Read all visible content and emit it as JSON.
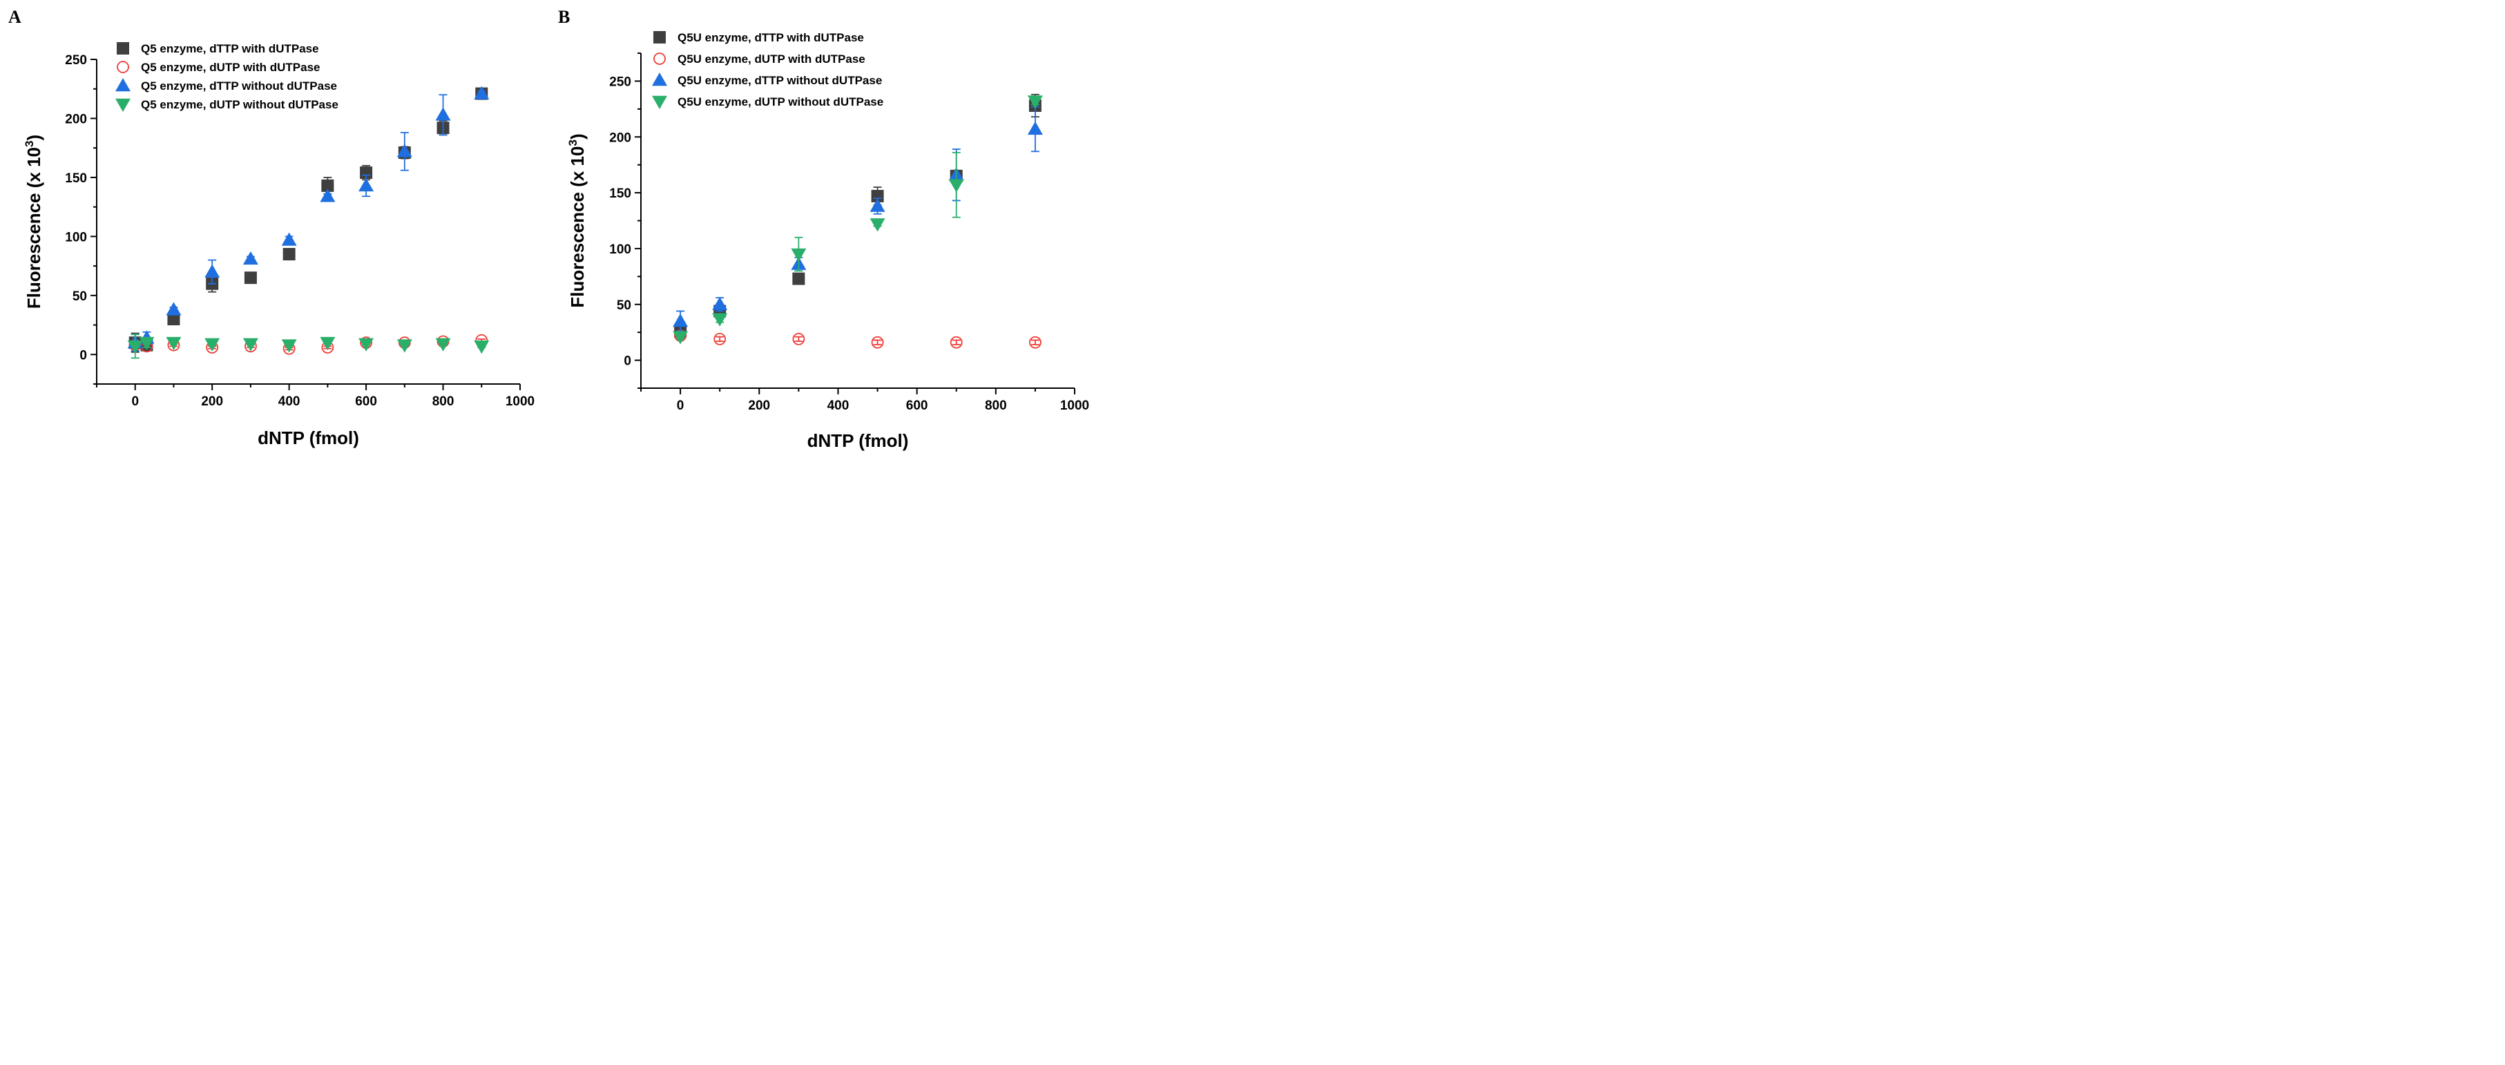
{
  "figure": {
    "panels": [
      "A",
      "B"
    ]
  },
  "colors": {
    "dTTP_with": "#3f3f3f",
    "dUTP_with": "#ef3b36",
    "dTTP_without": "#1f6fe0",
    "dUTP_without": "#2aaf6a"
  },
  "chart_data": [
    {
      "panel": "A",
      "type": "scatter",
      "title": "",
      "xlabel": "dNTP (fmol)",
      "ylabel_main": "Fluorescence (x 10",
      "ylabel_sup": "3",
      "ylabel_close": ")",
      "xlim": [
        -100,
        1000
      ],
      "ylim": [
        -25,
        250
      ],
      "xticks": [
        0,
        200,
        400,
        600,
        800,
        1000
      ],
      "yticks": [
        0,
        50,
        100,
        150,
        200,
        250
      ],
      "grid": false,
      "legend_position": "top-left",
      "series": [
        {
          "name": "Q5 enzyme, dTTP with dUTPase",
          "marker": "square",
          "color": "#3f3f3f",
          "x": [
            0,
            30,
            100,
            200,
            300,
            400,
            500,
            600,
            700,
            800,
            900
          ],
          "y": [
            10,
            8,
            30,
            60,
            65,
            85,
            143,
            154,
            171,
            192,
            221
          ],
          "err": [
            8,
            5,
            2,
            7,
            2,
            3,
            7,
            6,
            5,
            6,
            2
          ]
        },
        {
          "name": "Q5 enzyme, dUTP with dUTPase",
          "marker": "circle-open",
          "color": "#ef3b36",
          "x": [
            0,
            30,
            100,
            200,
            300,
            400,
            500,
            600,
            700,
            800,
            900
          ],
          "y": [
            8,
            7,
            8,
            6,
            7,
            5,
            6,
            10,
            10,
            11,
            12
          ],
          "err": [
            2,
            1,
            1,
            1,
            1,
            1,
            1,
            1,
            1,
            1,
            1
          ]
        },
        {
          "name": "Q5 enzyme, dTTP without dUTPase",
          "marker": "triangle-up",
          "color": "#1f6fe0",
          "x": [
            0,
            30,
            100,
            200,
            300,
            400,
            500,
            600,
            700,
            800,
            900
          ],
          "y": [
            10,
            14,
            38,
            70,
            81,
            97,
            134,
            143,
            172,
            203,
            221
          ],
          "err": [
            7,
            5,
            2,
            10,
            2,
            3,
            2,
            9,
            16,
            17,
            2
          ]
        },
        {
          "name": "Q5 enzyme, dUTP without dUTPase",
          "marker": "triangle-down",
          "color": "#2aaf6a",
          "x": [
            0,
            30,
            100,
            200,
            300,
            400,
            500,
            600,
            700,
            800,
            900
          ],
          "y": [
            7,
            10,
            10,
            9,
            9,
            8,
            10,
            9,
            8,
            9,
            7
          ],
          "err": [
            10,
            4,
            1,
            1,
            1,
            1,
            1,
            1,
            1,
            1,
            1
          ]
        }
      ]
    },
    {
      "panel": "B",
      "type": "scatter",
      "title": "",
      "xlabel": "dNTP (fmol)",
      "ylabel_main": "Fluorescence (x 10",
      "ylabel_sup": "3",
      "ylabel_close": ")",
      "xlim": [
        -100,
        1000
      ],
      "ylim": [
        -25,
        275
      ],
      "xticks": [
        0,
        200,
        400,
        600,
        800,
        1000
      ],
      "yticks": [
        0,
        50,
        100,
        150,
        200,
        250
      ],
      "grid": false,
      "legend_position": "top-left",
      "series": [
        {
          "name": "Q5U enzyme, dTTP with dUTPase",
          "marker": "square",
          "color": "#3f3f3f",
          "x": [
            0,
            100,
            300,
            500,
            700,
            900
          ],
          "y": [
            26,
            44,
            73,
            147,
            165,
            228
          ],
          "err": [
            3,
            3,
            2,
            8,
            5,
            10
          ]
        },
        {
          "name": "Q5U enzyme, dUTP with dUTPase",
          "marker": "circle-open",
          "color": "#ef3b36",
          "x": [
            0,
            100,
            300,
            500,
            700,
            900
          ],
          "y": [
            22,
            19,
            19,
            16,
            16,
            16
          ],
          "err": [
            2,
            2,
            2,
            2,
            2,
            2
          ]
        },
        {
          "name": "Q5U enzyme, dTTP without dUTPase",
          "marker": "triangle-up",
          "color": "#1f6fe0",
          "x": [
            0,
            100,
            300,
            500,
            700,
            900
          ],
          "y": [
            35,
            50,
            86,
            138,
            166,
            207
          ],
          "err": [
            9,
            6,
            6,
            7,
            23,
            20
          ]
        },
        {
          "name": "Q5U enzyme, dUTP without dUTPase",
          "marker": "triangle-down",
          "color": "#2aaf6a",
          "x": [
            0,
            100,
            300,
            500,
            700,
            900
          ],
          "y": [
            21,
            37,
            95,
            122,
            157,
            232
          ],
          "err": [
            2,
            3,
            15,
            2,
            29,
            3
          ]
        }
      ]
    }
  ]
}
